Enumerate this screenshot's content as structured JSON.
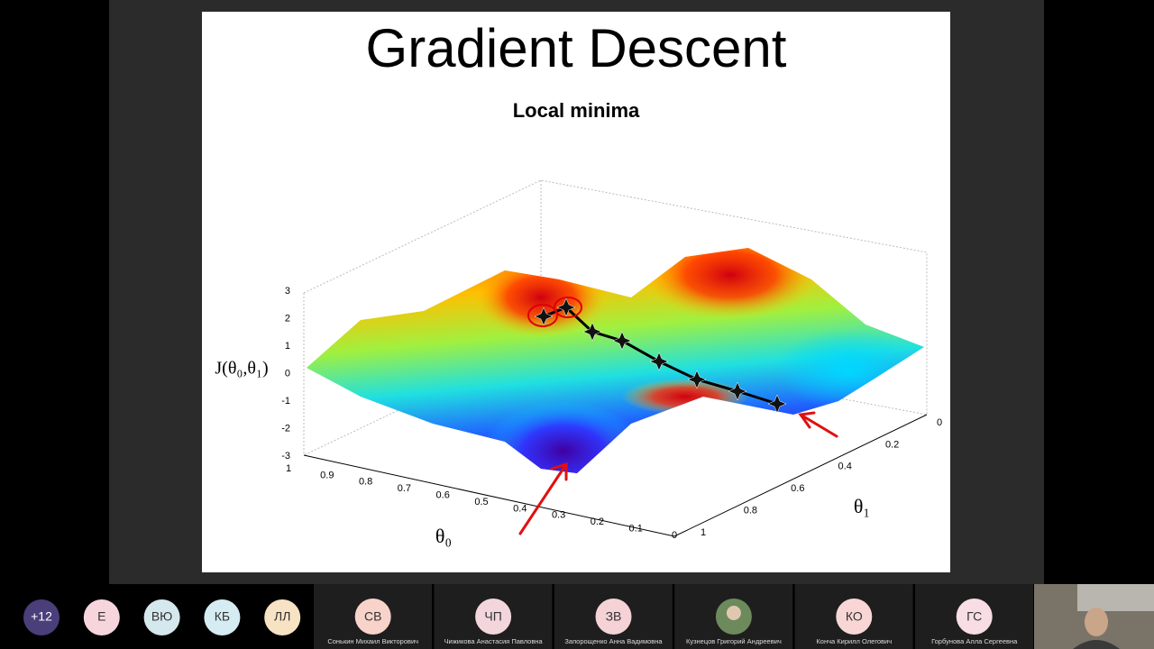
{
  "slide": {
    "title": "Gradient Descent",
    "subtitle": "Local minima",
    "plot": {
      "z_label": "J(θ₀,θ₁)",
      "x_label": "θ₀",
      "y_label": "θ₁",
      "z_ticks": [
        3,
        2,
        1,
        0,
        -1,
        -2,
        -3
      ],
      "x_ticks": [
        1,
        0.9,
        0.8,
        0.7,
        0.6,
        0.5,
        0.4,
        0.3,
        0.2,
        0.1,
        0
      ],
      "y_ticks": [
        0,
        0.2,
        0.4,
        0.6,
        0.8,
        1
      ]
    }
  },
  "participants": [
    {
      "label": "+12"
    },
    {
      "label": "Е"
    },
    {
      "label": "ВЮ"
    },
    {
      "label": "КБ"
    },
    {
      "label": "ЛЛ"
    }
  ],
  "tiles": [
    {
      "initials": "СВ",
      "name": "Сонькин Михаил Викторович"
    },
    {
      "initials": "ЧП",
      "name": "Чижикова Анастасия Павловна"
    },
    {
      "initials": "ЗВ",
      "name": "Запорощенко Анна Вадимовна"
    },
    {
      "name": "Кузнецов Григорий Андреевич"
    },
    {
      "initials": "КО",
      "name": "Конча Кирилл Олегович"
    },
    {
      "initials": "ГС",
      "name": "Горбунова Алла Сергеевна"
    }
  ]
}
